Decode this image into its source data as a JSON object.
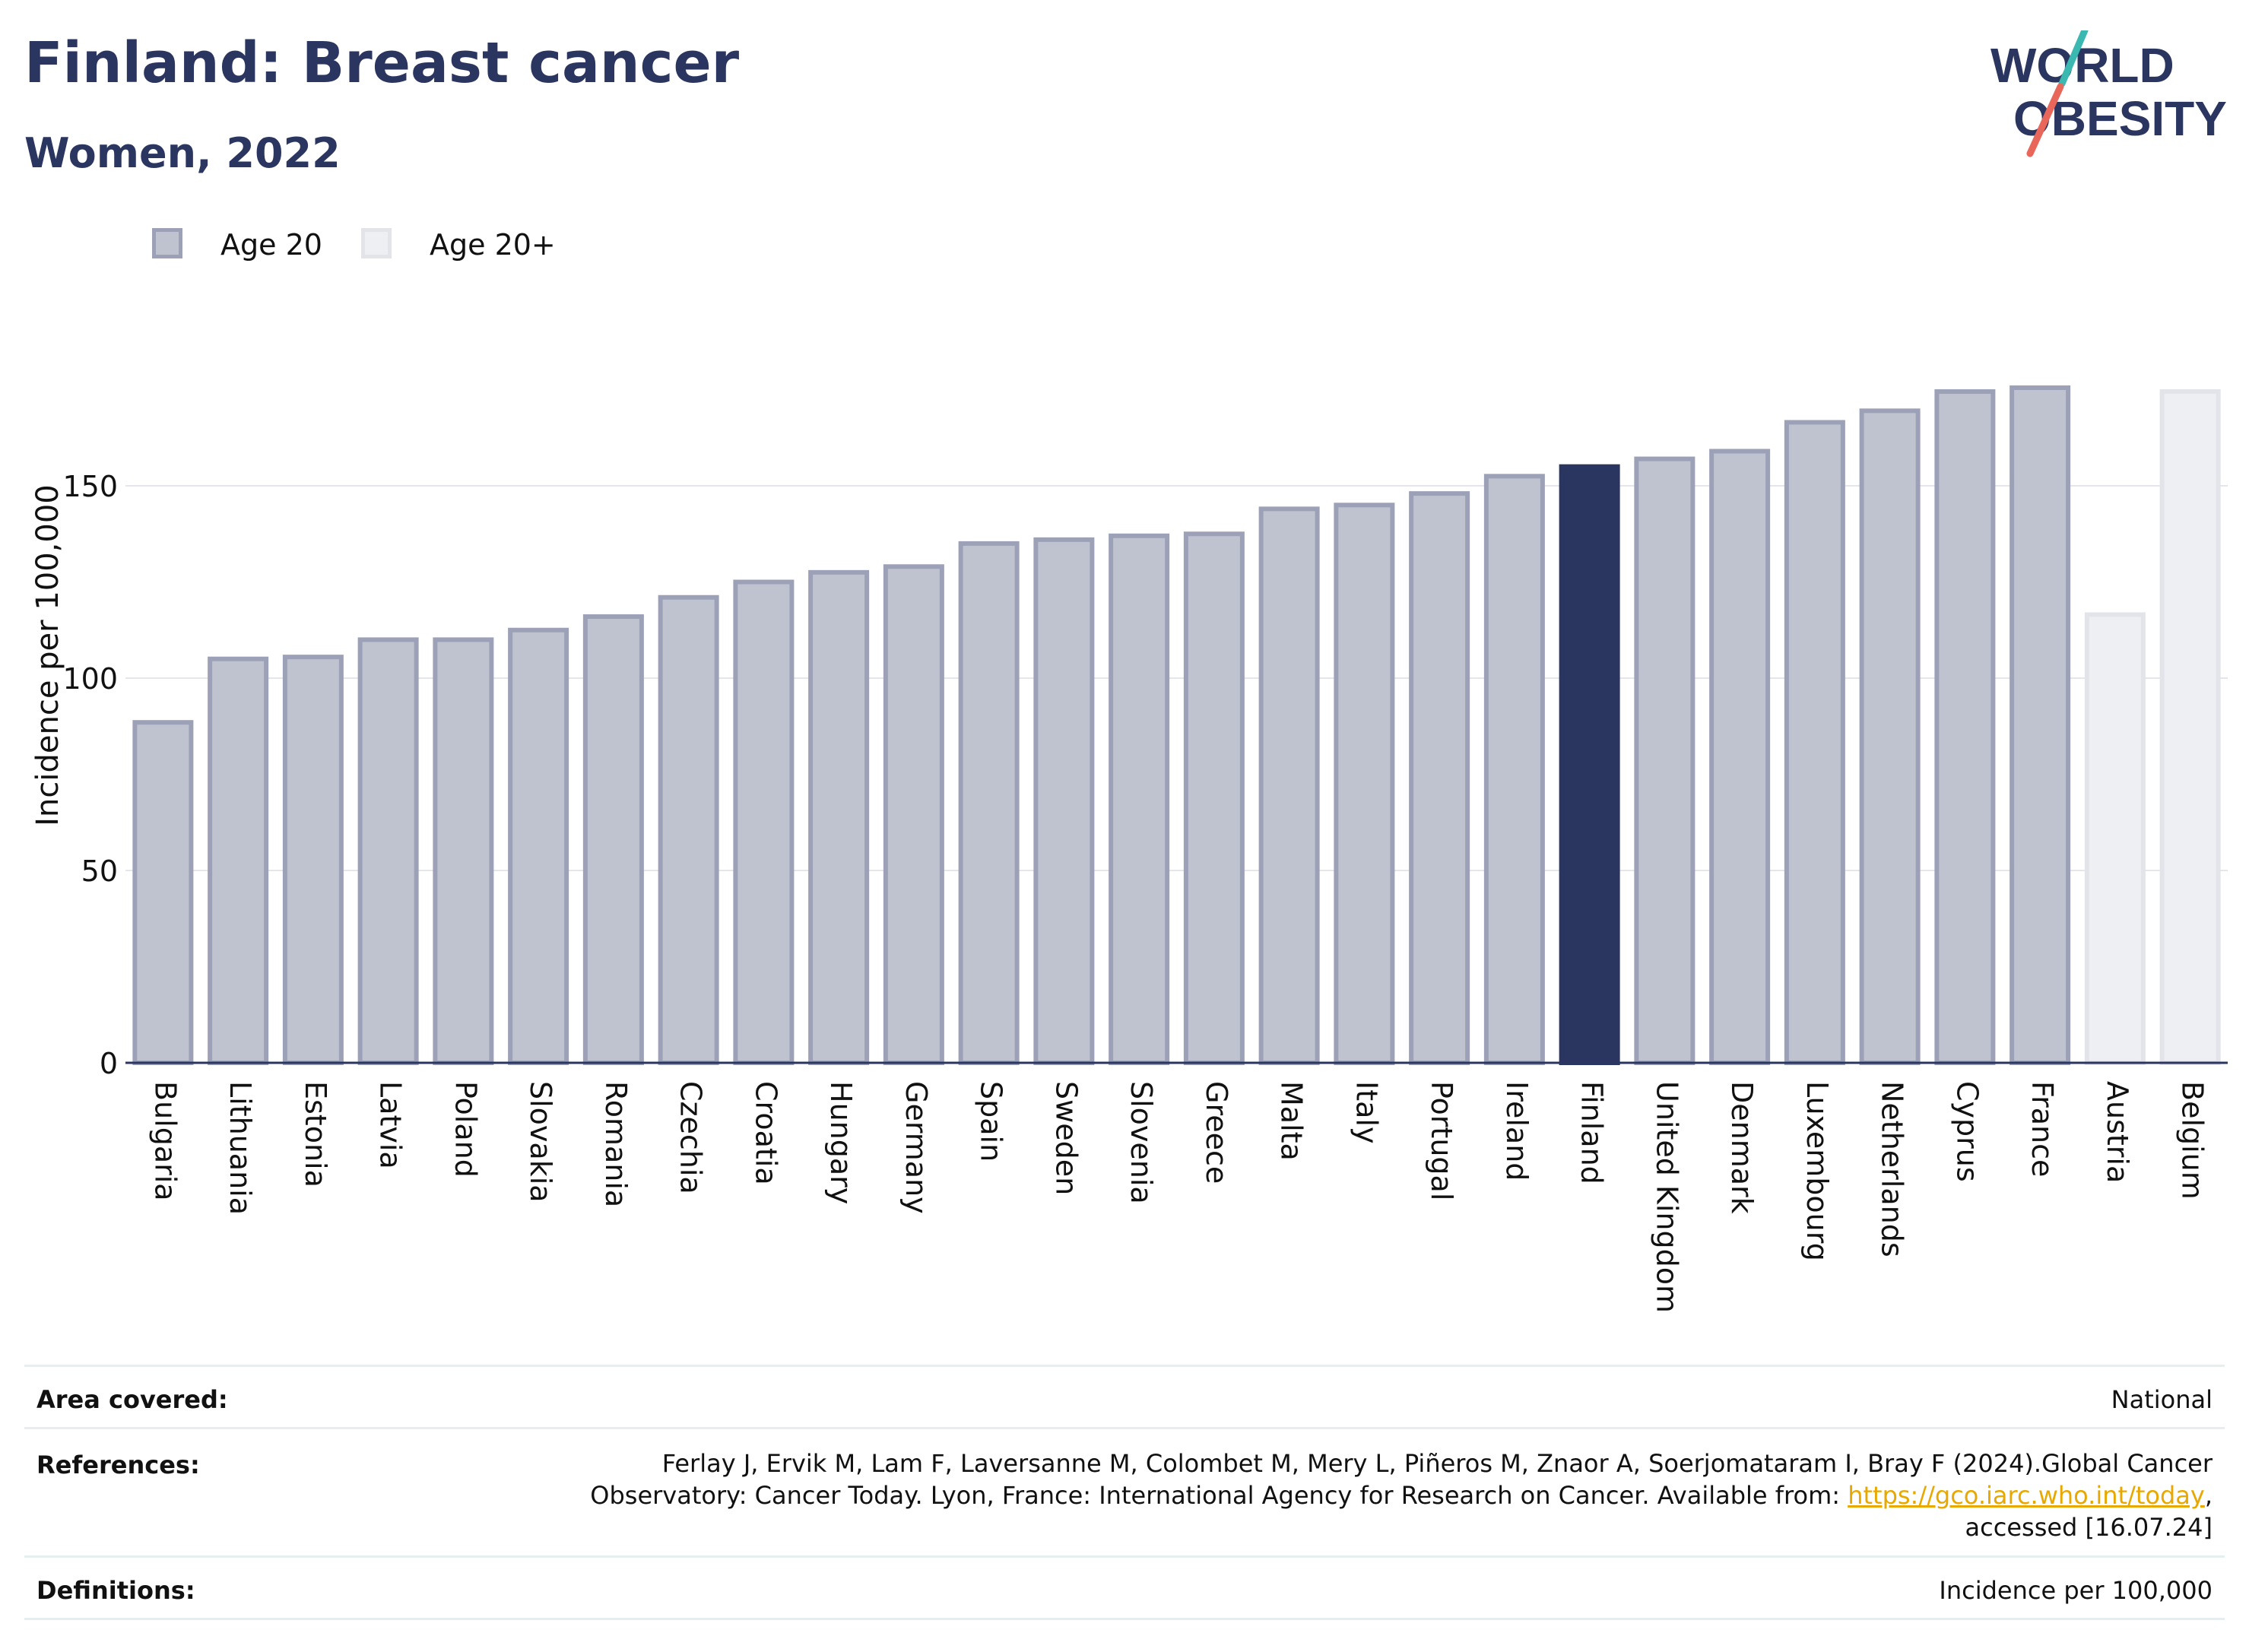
{
  "header": {
    "title": "Finland: Breast cancer",
    "subtitle": "Women, 2022"
  },
  "logo": {
    "line1": "WORLD",
    "line2": "OBESITY",
    "colors": {
      "text": "#2a3560",
      "slash_teal": "#3bb8b0",
      "slash_red": "#e8665a"
    }
  },
  "legend": {
    "items": [
      {
        "label": "Age 20",
        "fill": "#bfc3d0",
        "stroke": "#9ca1b8"
      },
      {
        "label": "Age 20+",
        "fill": "#eeeff3",
        "stroke": "#e2e4ea"
      }
    ]
  },
  "chart_data": {
    "type": "bar",
    "ylabel": "Incidence per 100,000",
    "xlabel": "",
    "ylim": [
      0,
      200
    ],
    "yticks": [
      0,
      50,
      100,
      150
    ],
    "grid": true,
    "highlight": "Finland",
    "colors": {
      "age20_fill": "#bfc3d0",
      "age20_stroke": "#9ca1b8",
      "age20plus_fill": "#eeeff3",
      "age20plus_stroke": "#e2e4ea",
      "highlight": "#2a3560"
    },
    "categories": [
      "Bulgaria",
      "Lithuania",
      "Estonia",
      "Latvia",
      "Poland",
      "Slovakia",
      "Romania",
      "Czechia",
      "Croatia",
      "Hungary",
      "Germany",
      "Spain",
      "Sweden",
      "Slovenia",
      "Greece",
      "Malta",
      "Italy",
      "Portugal",
      "Ireland",
      "Finland",
      "United Kingdom",
      "Denmark",
      "Luxembourg",
      "Netherlands",
      "Cyprus",
      "France",
      "Austria",
      "Belgium"
    ],
    "series": [
      {
        "name": "Age 20",
        "values": [
          88.5,
          105,
          105.5,
          110,
          110,
          112.5,
          116,
          121,
          125,
          127.5,
          129,
          135,
          136,
          137,
          137.5,
          144,
          145,
          148,
          152.5,
          155,
          157,
          159,
          166.5,
          169.5,
          174.5,
          175.5,
          null,
          null
        ]
      },
      {
        "name": "Age 20+",
        "values": [
          null,
          null,
          null,
          null,
          null,
          null,
          null,
          null,
          null,
          null,
          null,
          null,
          null,
          null,
          null,
          null,
          null,
          null,
          null,
          null,
          null,
          null,
          null,
          null,
          null,
          null,
          116.5,
          174.5
        ]
      }
    ]
  },
  "footer": {
    "area_label": "Area covered:",
    "area_value": "National",
    "references_label": "References:",
    "references_line1": "Ferlay J, Ervik M, Lam F, Laversanne M, Colombet M, Mery L, Piñeros M, Znaor A, Soerjomataram I, Bray F (2024).Global Cancer",
    "references_line2_pre": "Observatory: Cancer Today. Lyon, France: International Agency for Research on Cancer. Available from: ",
    "references_link": "https://gco.iarc.who.int/today",
    "references_line2_post": ",",
    "references_line3": "accessed [16.07.24]",
    "definitions_label": "Definitions:",
    "definitions_value": "Incidence per 100,000"
  }
}
